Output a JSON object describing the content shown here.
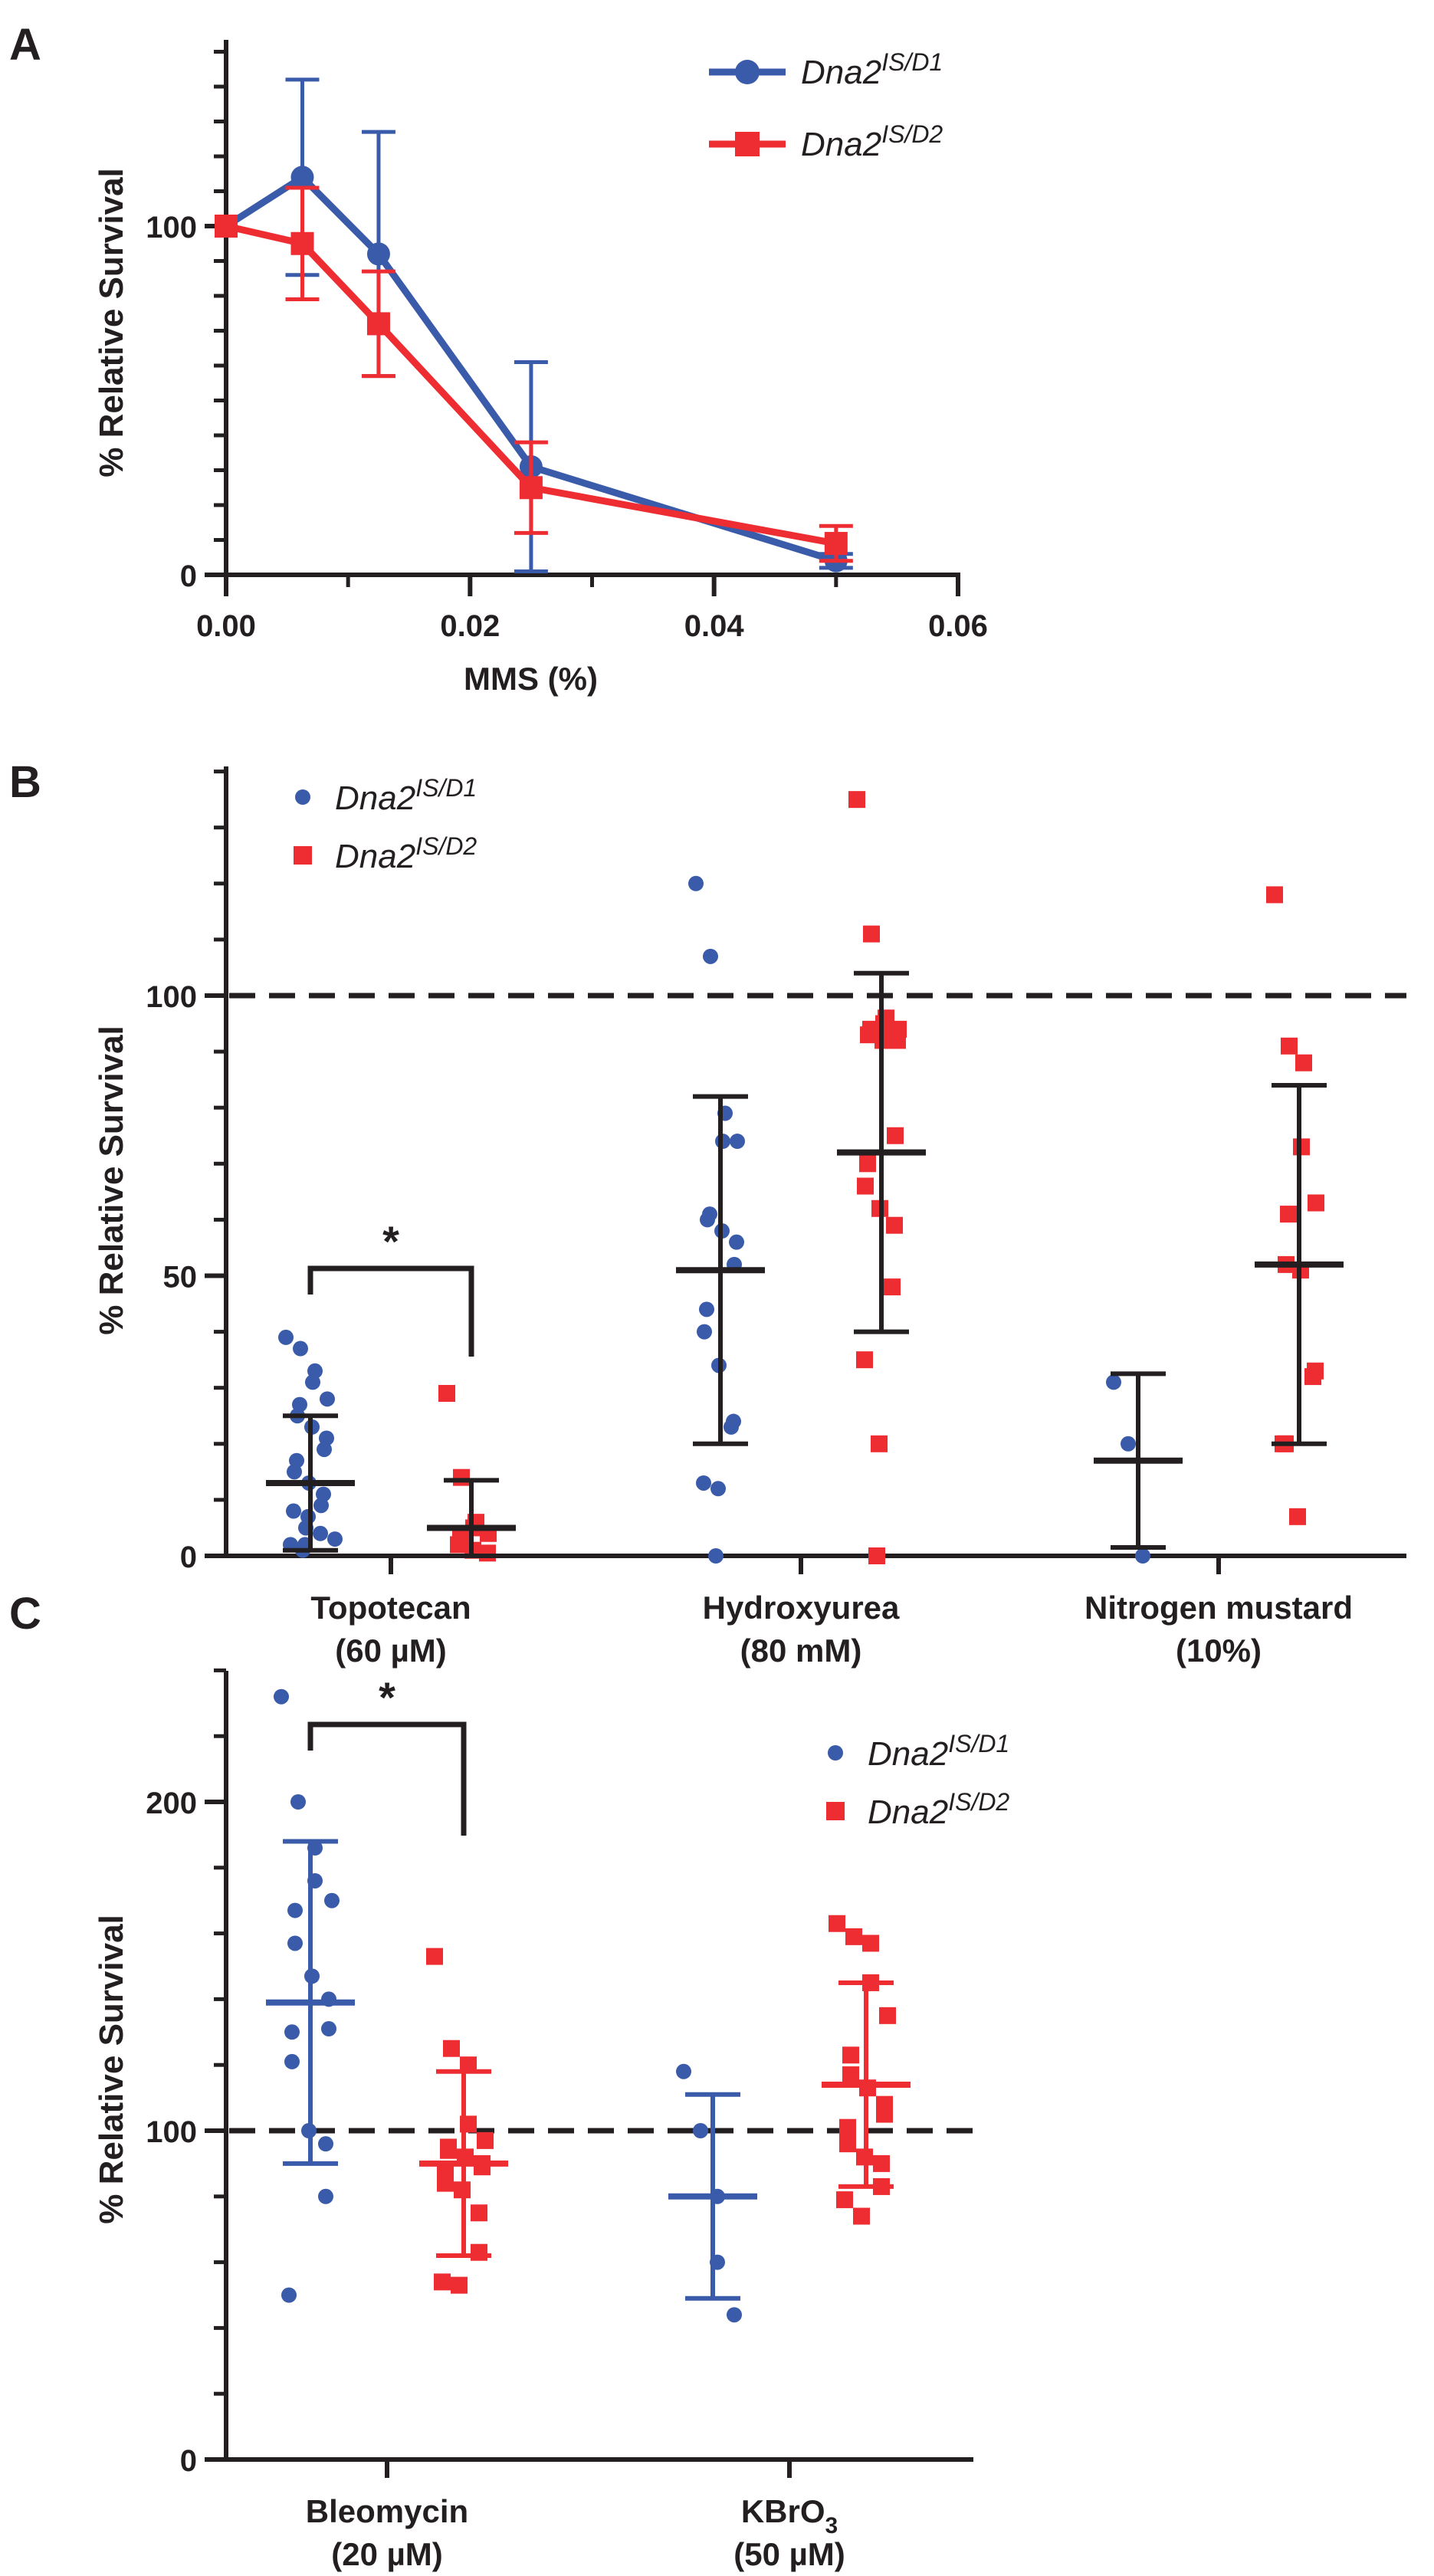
{
  "colors": {
    "series1": "#3a5ba9",
    "series2": "#ee2d32",
    "axis": "#231f20",
    "black": "#231f20"
  },
  "chart_data": [
    {
      "panel": "A",
      "type": "line",
      "xlabel": "MMS (%)",
      "ylabel": "% Relative Survival",
      "xlim": [
        0,
        0.06
      ],
      "ylim": [
        0,
        150
      ],
      "xticks": [
        0,
        0.02,
        0.04,
        0.06
      ],
      "xtick_labels": [
        "0.00",
        "0.02",
        "0.04",
        "0.06"
      ],
      "yticks": [
        0,
        100
      ],
      "ytick_labels": [
        "0",
        "100"
      ],
      "legend_position": "top-right",
      "series": [
        {
          "name": "Dna2",
          "name_sup": "IS/D1",
          "marker": "circle",
          "x": [
            0,
            0.00625,
            0.0125,
            0.025,
            0.05
          ],
          "y": [
            100,
            114,
            92,
            31,
            4
          ],
          "err": [
            0,
            28,
            35,
            30,
            2
          ]
        },
        {
          "name": "Dna2",
          "name_sup": "IS/D2",
          "marker": "square",
          "x": [
            0,
            0.00625,
            0.0125,
            0.025,
            0.05
          ],
          "y": [
            100,
            95,
            72,
            25,
            9
          ],
          "err": [
            0,
            16,
            15,
            13,
            5
          ]
        }
      ]
    },
    {
      "panel": "B",
      "type": "scatter",
      "ylabel": "% Relative Survival",
      "ylim": [
        0,
        140
      ],
      "yticks": [
        0,
        50,
        100
      ],
      "ytick_labels": [
        "0",
        "50",
        "100"
      ],
      "reference_line": 100,
      "legend_position": "top-left",
      "series_names": [
        {
          "name": "Dna2",
          "sup": "IS/D1"
        },
        {
          "name": "Dna2",
          "sup": "IS/D2"
        }
      ],
      "categories": [
        {
          "label": "Topotecan",
          "sublabel": "(60 µM)"
        },
        {
          "label": "Hydroxyurea",
          "sublabel": "(80 mM)"
        },
        {
          "label": "Nitrogen mustard",
          "sublabel": "(10%)"
        }
      ],
      "significance": [
        {
          "category": 0,
          "label": "*"
        }
      ],
      "groups": [
        {
          "category": 0,
          "series": 0,
          "mean": 13,
          "sd": 12,
          "points": [
            39,
            37,
            33,
            31,
            28,
            27,
            25,
            23,
            21,
            19,
            17,
            15,
            13,
            11,
            9,
            8,
            7,
            5,
            4,
            3,
            2,
            2,
            1
          ]
        },
        {
          "category": 0,
          "series": 1,
          "mean": 5,
          "sd": 8.5,
          "points": [
            29,
            14,
            6,
            5,
            4,
            3,
            2,
            1,
            0.5
          ]
        },
        {
          "category": 1,
          "series": 0,
          "mean": 51,
          "sd": 31,
          "points": [
            120,
            107,
            79,
            74,
            74,
            61,
            60,
            58,
            56,
            52,
            44,
            40,
            34,
            24,
            23,
            13,
            12,
            0
          ]
        },
        {
          "category": 1,
          "series": 1,
          "mean": 72,
          "sd": 32,
          "points": [
            135,
            111,
            96,
            95,
            94,
            94,
            93,
            92,
            92,
            75,
            70,
            66,
            62,
            59,
            48,
            35,
            20,
            0
          ]
        },
        {
          "category": 2,
          "series": 0,
          "mean": 17,
          "sd": 15.5,
          "points": [
            31,
            20,
            0
          ]
        },
        {
          "category": 2,
          "series": 1,
          "mean": 52,
          "sd": 32,
          "points": [
            118,
            91,
            88,
            73,
            63,
            61,
            52,
            51,
            33,
            32,
            20,
            20,
            7
          ]
        }
      ]
    },
    {
      "panel": "C",
      "type": "scatter",
      "ylabel": "% Relative Survival",
      "ylim": [
        0,
        250
      ],
      "yticks": [
        0,
        100,
        200
      ],
      "ytick_labels": [
        "0",
        "100",
        "200"
      ],
      "reference_line": 100,
      "legend_position": "top-right",
      "series_names": [
        {
          "name": "Dna2",
          "sup": "IS/D1"
        },
        {
          "name": "Dna2",
          "sup": "IS/D2"
        }
      ],
      "categories": [
        {
          "label": "Bleomycin",
          "sublabel": "(20 µM)"
        },
        {
          "label": "KBrO",
          "sub": "3",
          "sublabel": "(50 µM)"
        }
      ],
      "significance": [
        {
          "category": 0,
          "label": "*"
        }
      ],
      "groups": [
        {
          "category": 0,
          "series": 0,
          "mean": 139,
          "sd": 49,
          "points": [
            232,
            200,
            186,
            176,
            170,
            167,
            157,
            147,
            140,
            131,
            130,
            121,
            100,
            96,
            80,
            50
          ]
        },
        {
          "category": 0,
          "series": 1,
          "mean": 90,
          "sd": 28,
          "points": [
            153,
            125,
            120,
            102,
            97,
            95,
            94,
            92,
            90,
            89,
            87,
            84,
            82,
            75,
            63,
            54,
            53
          ]
        },
        {
          "category": 1,
          "series": 0,
          "mean": 80,
          "sd": 31,
          "points": [
            118,
            100,
            80,
            60,
            44
          ]
        },
        {
          "category": 1,
          "series": 1,
          "mean": 114,
          "sd": 31,
          "points": [
            163,
            159,
            157,
            145,
            135,
            123,
            117,
            113,
            108,
            105,
            101,
            96,
            92,
            90,
            83,
            79,
            74
          ]
        }
      ]
    }
  ],
  "panel_labels": [
    "A",
    "B",
    "C"
  ]
}
